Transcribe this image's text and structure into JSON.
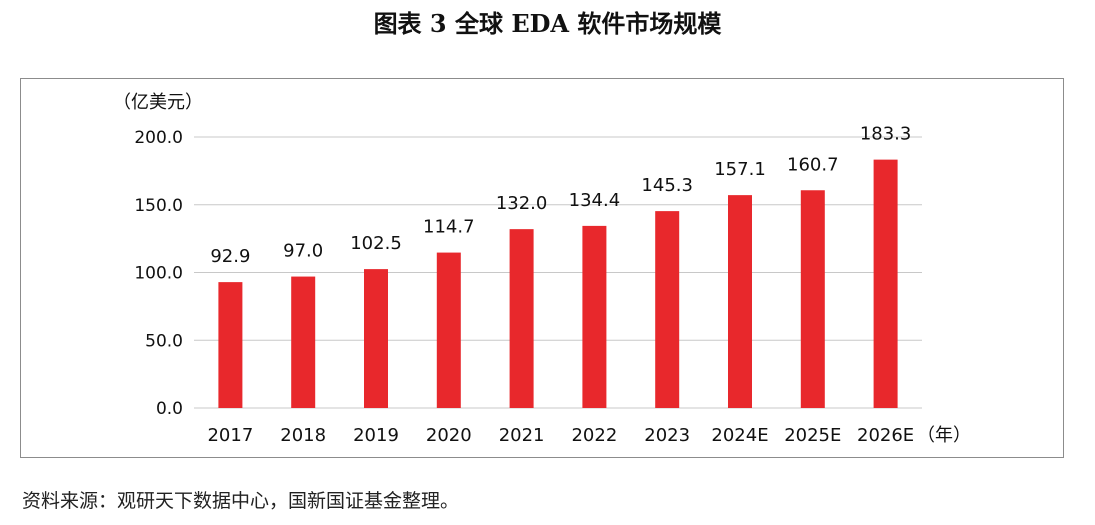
{
  "page": {
    "title": "图表 3  全球 EDA 软件市场规模",
    "source": "资料来源：观研天下数据中心，国新国证基金整理。"
  },
  "colors": {
    "bar": "#e8282c",
    "gridline": "#c8c8c8",
    "frame": "#8c8c8c"
  },
  "chart_data": {
    "type": "bar",
    "title": "全球 EDA 软件市场规模",
    "ylabel": "（亿美元）",
    "xlabel": "（年）",
    "categories": [
      "2017",
      "2018",
      "2019",
      "2020",
      "2021",
      "2022",
      "2023",
      "2024E",
      "2025E",
      "2026E"
    ],
    "values": [
      92.9,
      97.0,
      102.5,
      114.7,
      132.0,
      134.4,
      145.3,
      157.1,
      160.7,
      183.3
    ],
    "value_labels": [
      "92.9",
      "97.0",
      "102.5",
      "114.7",
      "132.0",
      "134.4",
      "145.3",
      "157.1",
      "160.7",
      "183.3"
    ],
    "ylim": [
      0,
      200
    ],
    "yticks": [
      0,
      50,
      100,
      150,
      200
    ],
    "ytick_labels": [
      "0.0",
      "50.0",
      "100.0",
      "150.0",
      "200.0"
    ],
    "grid": true,
    "legend": "none"
  }
}
